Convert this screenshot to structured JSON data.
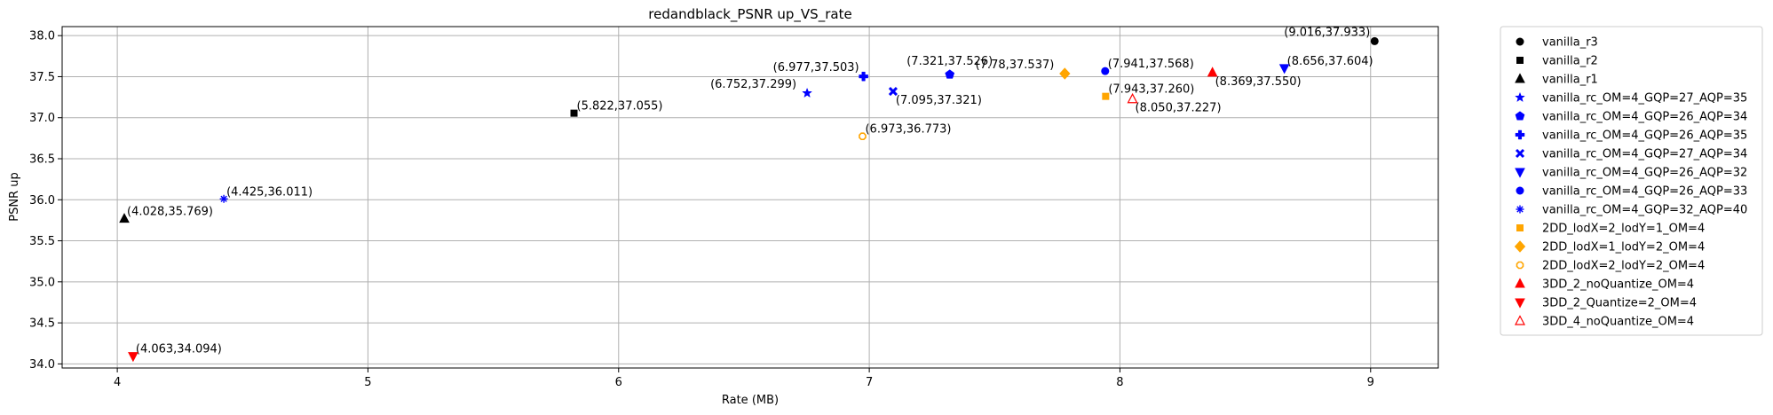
{
  "chart_data": {
    "type": "scatter",
    "title": "redandblack_PSNR up_VS_rate",
    "xlabel": "Rate (MB)",
    "ylabel": "PSNR up",
    "xlim": [
      3.78,
      9.27
    ],
    "ylim": [
      33.95,
      38.11
    ],
    "xticks": [
      {
        "value": 4,
        "label": "4"
      },
      {
        "value": 5,
        "label": "5"
      },
      {
        "value": 6,
        "label": "6"
      },
      {
        "value": 7,
        "label": "7"
      },
      {
        "value": 8,
        "label": "8"
      },
      {
        "value": 9,
        "label": "9"
      }
    ],
    "yticks": [
      {
        "value": 34.0,
        "label": "34.0"
      },
      {
        "value": 34.5,
        "label": "34.5"
      },
      {
        "value": 35.0,
        "label": "35.0"
      },
      {
        "value": 35.5,
        "label": "35.5"
      },
      {
        "value": 36.0,
        "label": "36.0"
      },
      {
        "value": 36.5,
        "label": "36.5"
      },
      {
        "value": 37.0,
        "label": "37.0"
      },
      {
        "value": 37.5,
        "label": "37.5"
      },
      {
        "value": 38.0,
        "label": "38.0"
      }
    ],
    "grid": true,
    "legend_position": "outside-right",
    "series": [
      {
        "name": "vanilla_r3",
        "marker": "circle",
        "color": "#000000",
        "x": 9.016,
        "y": 37.933,
        "label": "(9.016,37.933)",
        "label_anchor": "end",
        "label_pos": "above-left"
      },
      {
        "name": "vanilla_r2",
        "marker": "square",
        "color": "#000000",
        "x": 5.822,
        "y": 37.055,
        "label": "(5.822,37.055)",
        "label_anchor": "start",
        "label_pos": "above-right"
      },
      {
        "name": "vanilla_r1",
        "marker": "triangle-up",
        "color": "#000000",
        "x": 4.028,
        "y": 35.769,
        "label": "(4.028,35.769)",
        "label_anchor": "start",
        "label_pos": "above-right"
      },
      {
        "name": "vanilla_rc_OM=4_GQP=27_AQP=35",
        "marker": "star",
        "color": "#0000ff",
        "x": 6.752,
        "y": 37.299,
        "label": "(6.752,37.299)",
        "label_anchor": "end",
        "label_pos": "left"
      },
      {
        "name": "vanilla_rc_OM=4_GQP=26_AQP=34",
        "marker": "pentagon",
        "color": "#0000ff",
        "x": 7.321,
        "y": 37.526,
        "label": "(7.321,37.526)",
        "label_anchor": "middle",
        "label_pos": "above"
      },
      {
        "name": "vanilla_rc_OM=4_GQP=26_AQP=35",
        "marker": "plus",
        "color": "#0000ff",
        "x": 6.977,
        "y": 37.503,
        "label": "(6.977,37.503)",
        "label_anchor": "end",
        "label_pos": "above-left"
      },
      {
        "name": "vanilla_rc_OM=4_GQP=27_AQP=34",
        "marker": "x",
        "color": "#0000ff",
        "x": 7.095,
        "y": 37.321,
        "label": "(7.095,37.321)",
        "label_anchor": "start",
        "label_pos": "below-right"
      },
      {
        "name": "vanilla_rc_OM=4_GQP=26_AQP=32",
        "marker": "triangle-down",
        "color": "#0000ff",
        "x": 8.656,
        "y": 37.604,
        "label": "(8.656,37.604)",
        "label_anchor": "start",
        "label_pos": "above-right"
      },
      {
        "name": "vanilla_rc_OM=4_GQP=26_AQP=33",
        "marker": "circle",
        "color": "#0000ff",
        "x": 7.941,
        "y": 37.568,
        "label": "(7.941,37.568)",
        "label_anchor": "start",
        "label_pos": "above-right"
      },
      {
        "name": "vanilla_rc_OM=4_GQP=32_AQP=40",
        "marker": "asterisk",
        "color": "#0000ff",
        "x": 4.425,
        "y": 36.011,
        "label": "(4.425,36.011)",
        "label_anchor": "start",
        "label_pos": "above-right"
      },
      {
        "name": "2DD_lodX=2_lodY=1_OM=4",
        "marker": "square",
        "color": "#ffa500",
        "x": 7.943,
        "y": 37.26,
        "label": "(7.943,37.260)",
        "label_anchor": "start",
        "label_pos": "above-right"
      },
      {
        "name": "2DD_lodX=1_lodY=2_OM=4",
        "marker": "diamond",
        "color": "#ffa500",
        "x": 7.78,
        "y": 37.537,
        "label": "(7.78,37.537)",
        "label_anchor": "end",
        "label_pos": "left"
      },
      {
        "name": "2DD_lodX=2_lodY=2_OM=4",
        "marker": "octagon-open",
        "color": "#ffa500",
        "x": 6.973,
        "y": 36.773,
        "label": "(6.973,36.773)",
        "label_anchor": "start",
        "label_pos": "above-right"
      },
      {
        "name": "3DD_2_noQuantize_OM=4",
        "marker": "triangle-up",
        "color": "#ff0000",
        "x": 8.369,
        "y": 37.55,
        "label": "(8.369,37.550)",
        "label_anchor": "start",
        "label_pos": "below-right"
      },
      {
        "name": "3DD_2_Quantize=2_OM=4",
        "marker": "triangle-down",
        "color": "#ff0000",
        "x": 4.063,
        "y": 34.094,
        "label": "(4.063,34.094)",
        "label_anchor": "start",
        "label_pos": "above-right"
      },
      {
        "name": "3DD_4_noQuantize_OM=4",
        "marker": "triangle-up-open",
        "color": "#ff0000",
        "x": 8.05,
        "y": 37.227,
        "label": "(8.050,37.227)",
        "label_anchor": "start",
        "label_pos": "below-right"
      }
    ]
  }
}
